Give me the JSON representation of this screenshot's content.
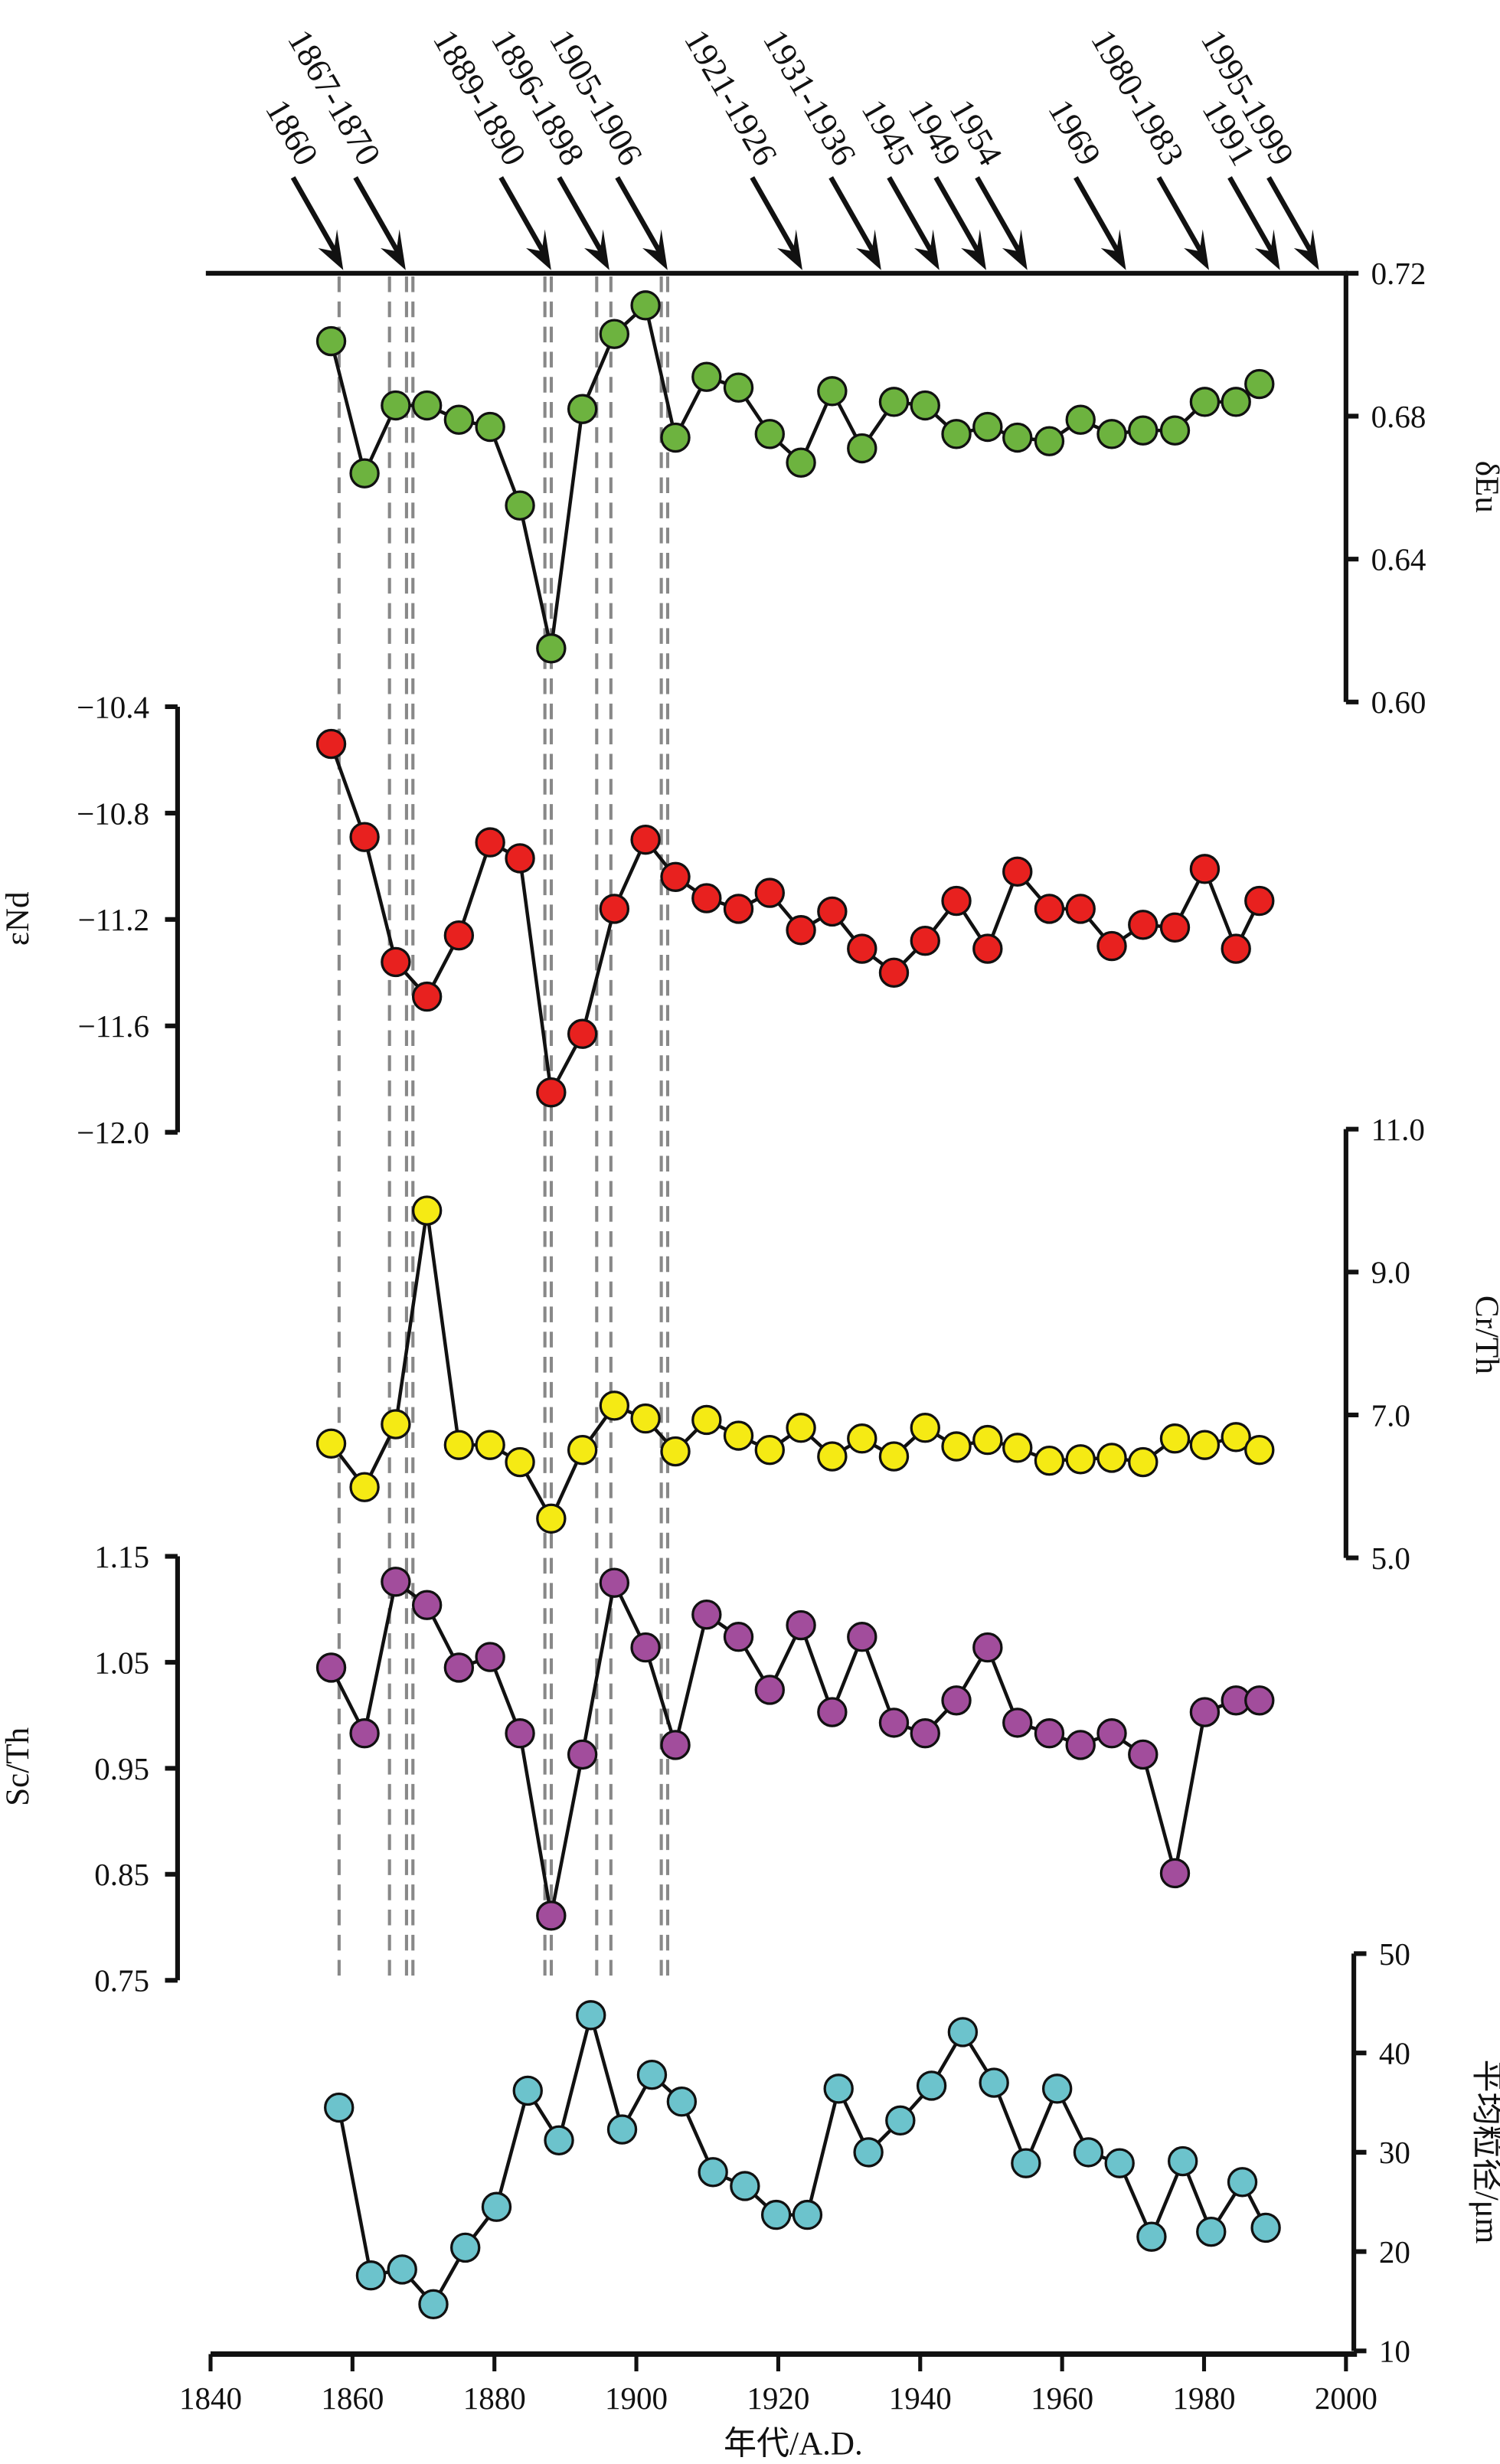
{
  "chart_data": [
    {
      "type": "line",
      "id": "eu",
      "ylabel": "δEu",
      "ylim": [
        0.6,
        0.72
      ],
      "yticks": [
        "0.72",
        "0.68",
        "0.64",
        "0.60"
      ],
      "ytick_values": [
        0.72,
        0.68,
        0.64,
        0.6
      ],
      "axis_side": "right",
      "color": "#6db33f",
      "x": [
        1857.0,
        1861.7,
        1866.1,
        1870.5,
        1875.0,
        1879.4,
        1883.6,
        1888.0,
        1892.4,
        1896.9,
        1901.3,
        1905.5,
        1909.9,
        1914.4,
        1918.8,
        1923.2,
        1927.6,
        1931.8,
        1936.3,
        1940.7,
        1945.1,
        1949.5,
        1953.7,
        1958.2,
        1962.6,
        1967.0,
        1971.4,
        1975.9,
        1980.1,
        1984.5,
        1987.8
      ],
      "y": [
        0.701,
        0.664,
        0.683,
        0.683,
        0.679,
        0.677,
        0.655,
        0.615,
        0.682,
        0.703,
        0.711,
        0.674,
        0.691,
        0.688,
        0.675,
        0.667,
        0.687,
        0.671,
        0.684,
        0.683,
        0.675,
        0.677,
        0.674,
        0.673,
        0.679,
        0.675,
        0.676,
        0.676,
        0.684,
        0.684,
        0.689
      ]
    },
    {
      "type": "line",
      "id": "nd",
      "ylabel": "εNd",
      "ylim": [
        -12.0,
        -10.4
      ],
      "yticks": [
        "−10.4",
        "−10.8",
        "−11.2",
        "−11.6",
        "−12.0"
      ],
      "ytick_values": [
        -10.4,
        -10.8,
        -11.2,
        -11.6,
        -12.0
      ],
      "axis_side": "left",
      "color": "#e8211f",
      "x": [
        1857.0,
        1861.7,
        1866.1,
        1870.5,
        1875.0,
        1879.4,
        1883.6,
        1888.0,
        1892.4,
        1896.9,
        1901.3,
        1905.5,
        1909.9,
        1914.4,
        1918.8,
        1923.2,
        1927.6,
        1931.8,
        1936.3,
        1940.7,
        1945.1,
        1949.5,
        1953.7,
        1958.2,
        1962.6,
        1967.0,
        1971.4,
        1975.9,
        1980.1,
        1984.5,
        1987.8
      ],
      "y": [
        -10.54,
        -10.89,
        -11.36,
        -11.49,
        -11.26,
        -10.91,
        -10.97,
        -11.85,
        -11.63,
        -11.16,
        -10.9,
        -11.04,
        -11.12,
        -11.16,
        -11.1,
        -11.24,
        -11.17,
        -11.31,
        -11.4,
        -11.28,
        -11.13,
        -11.31,
        -11.02,
        -11.16,
        -11.16,
        -11.3,
        -11.22,
        -11.23,
        -11.01,
        -11.31,
        -11.13
      ]
    },
    {
      "type": "line",
      "id": "crth",
      "ylabel": "Cr/Th",
      "ylim": [
        5.0,
        11.0
      ],
      "yticks": [
        "11.0",
        "9.0",
        "7.0",
        "5.0"
      ],
      "ytick_values": [
        11.0,
        9.0,
        7.0,
        5.0
      ],
      "axis_side": "right",
      "color": "#f5ea14",
      "x": [
        1857.0,
        1861.7,
        1866.1,
        1870.5,
        1875.0,
        1879.4,
        1883.6,
        1888.0,
        1892.4,
        1896.9,
        1901.3,
        1905.5,
        1909.9,
        1914.4,
        1918.8,
        1923.2,
        1927.6,
        1931.8,
        1936.3,
        1940.7,
        1945.1,
        1949.5,
        1953.7,
        1958.2,
        1962.6,
        1967.0,
        1971.4,
        1975.9,
        1980.1,
        1984.5,
        1987.8
      ],
      "y": [
        6.6,
        5.99,
        6.87,
        9.86,
        6.58,
        6.58,
        6.34,
        5.55,
        6.51,
        7.13,
        6.95,
        6.49,
        6.93,
        6.71,
        6.51,
        6.82,
        6.42,
        6.67,
        6.42,
        6.82,
        6.56,
        6.65,
        6.54,
        6.36,
        6.38,
        6.4,
        6.34,
        6.67,
        6.58,
        6.69,
        6.51
      ]
    },
    {
      "type": "line",
      "id": "scth",
      "ylabel": "Sc/Th",
      "ylim": [
        0.75,
        1.15
      ],
      "yticks": [
        "1.15",
        "1.05",
        "0.95",
        "0.85",
        "0.75"
      ],
      "ytick_values": [
        1.15,
        1.05,
        0.95,
        0.85,
        0.75
      ],
      "axis_side": "left",
      "color": "#a24d9c",
      "x": [
        1857.0,
        1861.7,
        1866.1,
        1870.5,
        1875.0,
        1879.4,
        1883.6,
        1888.0,
        1892.4,
        1896.9,
        1901.3,
        1905.5,
        1909.9,
        1914.4,
        1918.8,
        1923.2,
        1927.6,
        1931.8,
        1936.3,
        1940.7,
        1945.1,
        1949.5,
        1953.7,
        1958.2,
        1962.6,
        1967.0,
        1971.4,
        1975.9,
        1980.1,
        1984.5,
        1987.8
      ],
      "y": [
        1.045,
        0.983,
        1.126,
        1.104,
        1.045,
        1.055,
        0.983,
        0.811,
        0.963,
        1.125,
        1.064,
        0.972,
        1.095,
        1.074,
        1.024,
        1.085,
        1.003,
        1.074,
        0.993,
        0.983,
        1.014,
        1.064,
        0.993,
        0.983,
        0.972,
        0.983,
        0.963,
        0.851,
        1.003,
        1.014,
        1.014
      ]
    },
    {
      "type": "line",
      "id": "grain",
      "ylabel": "平均粒径/μm",
      "ylim": [
        10,
        50
      ],
      "yticks": [
        "50",
        "40",
        "30",
        "20",
        "10"
      ],
      "ytick_values": [
        50,
        40,
        30,
        20,
        10
      ],
      "axis_side": "right",
      "color": "#6cc3cc",
      "x": [
        1858.1,
        1862.6,
        1867.0,
        1871.4,
        1875.9,
        1880.3,
        1884.7,
        1889.1,
        1893.6,
        1898.0,
        1902.2,
        1906.4,
        1910.8,
        1915.3,
        1919.7,
        1924.1,
        1928.5,
        1932.7,
        1937.2,
        1941.6,
        1946.0,
        1950.4,
        1954.9,
        1959.3,
        1963.7,
        1968.1,
        1972.6,
        1977.0,
        1981.0,
        1985.4,
        1988.7
      ],
      "y": [
        34.5,
        17.6,
        18.2,
        14.7,
        20.4,
        24.5,
        36.2,
        31.2,
        43.8,
        32.3,
        37.8,
        35.1,
        28.0,
        26.6,
        23.7,
        23.7,
        36.4,
        30.0,
        33.2,
        36.7,
        42.1,
        37.0,
        28.9,
        36.4,
        30.0,
        28.9,
        21.5,
        29.1,
        22.0,
        27.0,
        22.4
      ]
    }
  ],
  "x_axis": {
    "label": "年代/A.D.",
    "xlim": [
      1840,
      2000
    ],
    "ticks": [
      "1840",
      "1860",
      "1880",
      "1900",
      "1920",
      "1940",
      "1960",
      "1980",
      "2000"
    ],
    "tick_values": [
      1840,
      1860,
      1880,
      1900,
      1920,
      1940,
      1960,
      1980,
      2000
    ]
  },
  "events": [
    {
      "label": "1860",
      "year": 1858.7
    },
    {
      "label": "1867-1870",
      "year": 1867.5
    },
    {
      "label": "1889-1890",
      "year": 1888.0
    },
    {
      "label": "1896-1898",
      "year": 1896.2
    },
    {
      "label": "1905-1906",
      "year": 1904.4
    },
    {
      "label": "1921-1926",
      "year": 1923.4
    },
    {
      "label": "1931-1936",
      "year": 1934.5
    },
    {
      "label": "1945",
      "year": 1942.7
    },
    {
      "label": "1949",
      "year": 1949.3
    },
    {
      "label": "1954",
      "year": 1955.1
    },
    {
      "label": "1969",
      "year": 1969.0
    },
    {
      "label": "1980-1983",
      "year": 1980.7
    },
    {
      "label": "1991",
      "year": 1990.7
    },
    {
      "label": "1995-1999",
      "year": 1996.2
    }
  ],
  "event_lines": [
    1859.0,
    1866.1,
    1868.5,
    1869.4,
    1888.0,
    1888.9,
    1895.3,
    1897.3,
    1904.4,
    1905.3
  ]
}
